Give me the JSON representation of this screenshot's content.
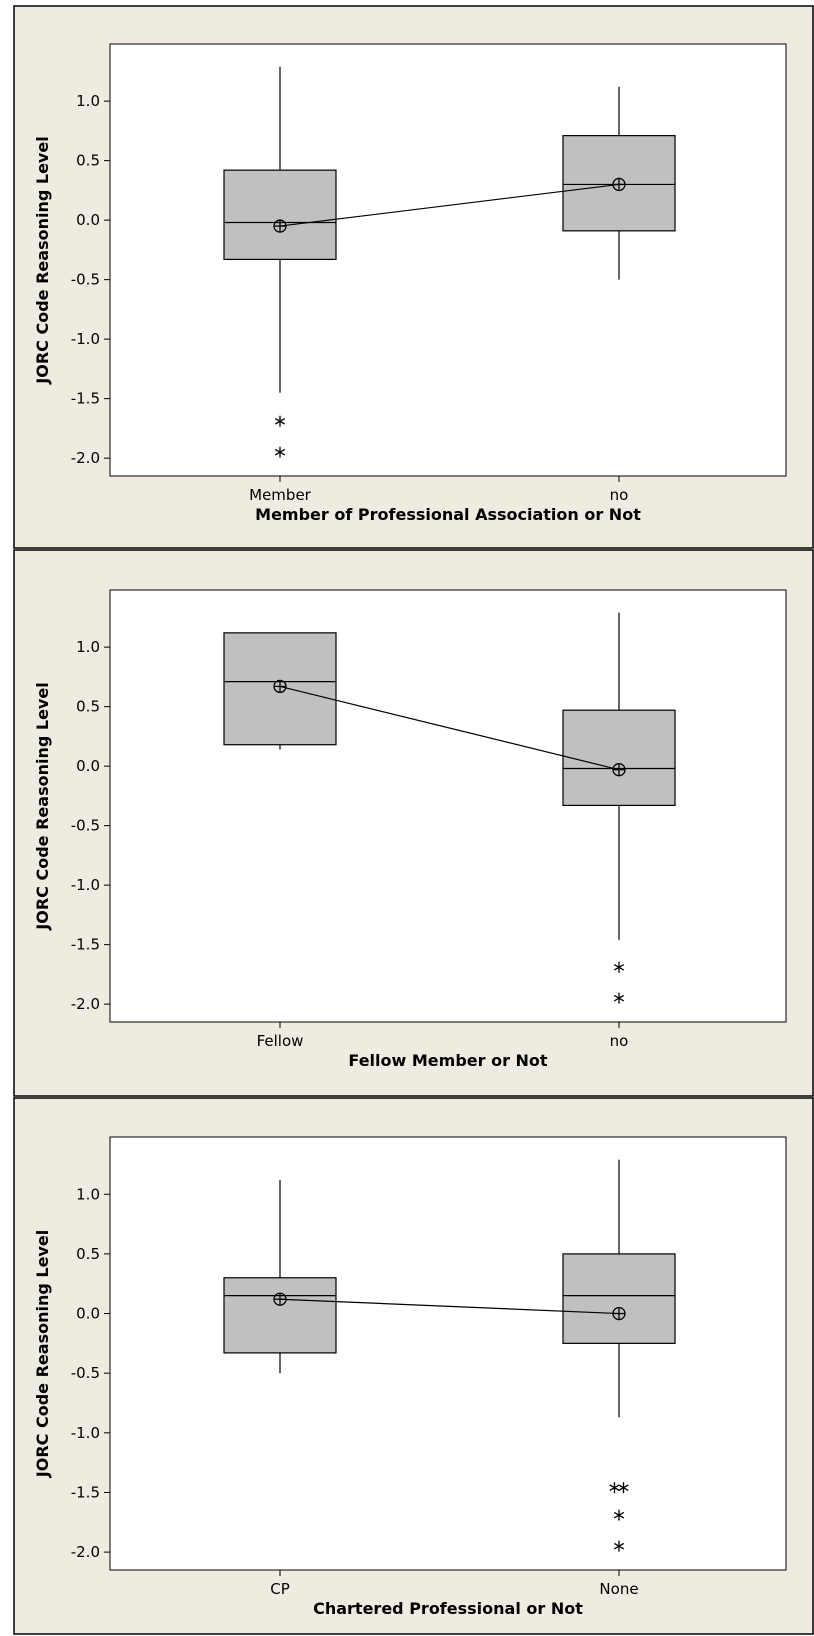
{
  "colors": {
    "panel_background": "#efebe1",
    "box_fill": "#c0c0c0",
    "plot_background": "#ffffff",
    "stroke": "#000000"
  },
  "chart_data": [
    {
      "type": "boxplot",
      "xlabel": "Member of Professional Association or Not",
      "ylabel": "JORC Code Reasoning Level",
      "ylim": [
        -2.15,
        1.48
      ],
      "yticks": [
        1.0,
        0.5,
        0.0,
        -0.5,
        -1.0,
        -1.5,
        -2.0
      ],
      "ytick_labels": [
        "1.0",
        "0.5",
        "0.0",
        "-0.5",
        "-1.0",
        "-1.5",
        "-2.0"
      ],
      "categories": [
        "Member",
        "no"
      ],
      "boxes": [
        {
          "category": "Member",
          "whisker_low": -1.45,
          "q1": -0.33,
          "median": -0.02,
          "q3": 0.42,
          "whisker_high": 1.29,
          "mean": -0.05,
          "outliers": [
            -1.69,
            -1.95
          ]
        },
        {
          "category": "no",
          "whisker_low": -0.5,
          "q1": -0.09,
          "median": 0.3,
          "q3": 0.71,
          "whisker_high": 1.12,
          "mean": 0.3,
          "outliers": []
        }
      ],
      "mean_connect_line": true,
      "grid": false
    },
    {
      "type": "boxplot",
      "xlabel": "Fellow Member or Not",
      "ylabel": "JORC Code Reasoning Level",
      "ylim": [
        -2.15,
        1.48
      ],
      "yticks": [
        1.0,
        0.5,
        0.0,
        -0.5,
        -1.0,
        -1.5,
        -2.0
      ],
      "ytick_labels": [
        "1.0",
        "0.5",
        "0.0",
        "-0.5",
        "-1.0",
        "-1.5",
        "-2.0"
      ],
      "categories": [
        "Fellow",
        "no"
      ],
      "boxes": [
        {
          "category": "Fellow",
          "whisker_low": 0.14,
          "q1": 0.18,
          "median": 0.71,
          "q3": 1.12,
          "whisker_high": 1.12,
          "mean": 0.67,
          "outliers": []
        },
        {
          "category": "no",
          "whisker_low": -1.46,
          "q1": -0.33,
          "median": -0.02,
          "q3": 0.47,
          "whisker_high": 1.29,
          "mean": -0.03,
          "outliers": [
            -1.69,
            -1.95
          ]
        }
      ],
      "mean_connect_line": true,
      "grid": false
    },
    {
      "type": "boxplot",
      "xlabel": "Chartered Professional or Not",
      "ylabel": "JORC Code Reasoning Level",
      "ylim": [
        -2.15,
        1.48
      ],
      "yticks": [
        1.0,
        0.5,
        0.0,
        -0.5,
        -1.0,
        -1.5,
        -2.0
      ],
      "ytick_labels": [
        "1.0",
        "0.5",
        "0.0",
        "-0.5",
        "-1.0",
        "-1.5",
        "-2.0"
      ],
      "categories": [
        "CP",
        "None"
      ],
      "boxes": [
        {
          "category": "CP",
          "whisker_low": -0.5,
          "q1": -0.33,
          "median": 0.15,
          "q3": 0.3,
          "whisker_high": 1.12,
          "mean": 0.12,
          "outliers": []
        },
        {
          "category": "None",
          "whisker_low": -0.87,
          "q1": -0.25,
          "median": 0.15,
          "q3": 0.5,
          "whisker_high": 1.29,
          "mean": 0.0,
          "outliers": [
            -1.46,
            -1.46,
            -1.69,
            -1.95
          ]
        }
      ],
      "mean_connect_line": true,
      "grid": false
    }
  ]
}
